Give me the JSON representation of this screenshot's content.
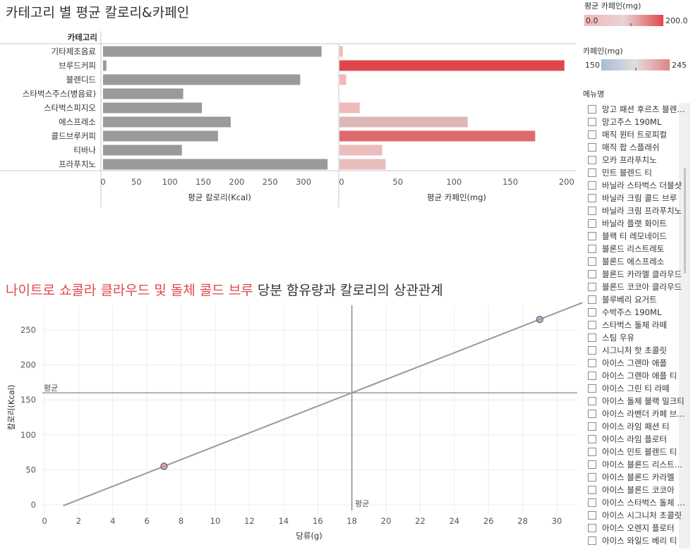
{
  "top_chart": {
    "title": "카테고리 별 평균 칼로리&카페인",
    "category_header": "카테고리",
    "calorie_axis_label": "평균 칼로리(Kcal)",
    "caffeine_axis_label": "평균 카페인(mg)"
  },
  "scatter": {
    "title_highlight": "나이트로 쇼콜라 클라우드 및 돌체 콜드 브루",
    "title_rest": " 당분 함유량과 칼로리의 상관관계",
    "xlabel": "당류(g)",
    "ylabel": "칼로리(Kcal)",
    "avg_label_h": "평균",
    "avg_label_v": "평균"
  },
  "legend": {
    "avg_caffeine": {
      "title": "평균 카페인(mg)",
      "min": "0.0",
      "max": "200.0",
      "color_low": "#f5b8b8",
      "color_high": "#e0474c"
    },
    "caffeine": {
      "title": "카페인(mg)",
      "min": "150",
      "max": "245",
      "color_low": "#a7bcd8",
      "color_high": "#e38282"
    }
  },
  "menu_filter": {
    "title": "메뉴명",
    "items": [
      "망고 패션 후르츠 블렌디드",
      "망고주스 190ML",
      "매직 윈터 트로피컬",
      "매직 팝 스플래쉬",
      "모카 프라푸치노",
      "민트 블렌드 티",
      "바닐라 스타벅스 더블샷",
      "바닐라 크림 콜드 브루",
      "바닐라 크림 프라푸치노",
      "바닐라 플랫 화이트",
      "블랙 티 레모네이드",
      "블론드 리스트레토",
      "블론드 에스프레소",
      "블론드 카라멜 클라우드",
      "블론드 코코아 클라우드",
      "블루베리 요거트",
      "수박주스 190ML",
      "스타벅스 돌체 라떼",
      "스팀 우유",
      "시그니처 핫 초콜릿",
      "아이스 그랜마 애플",
      "아이스 그랜마 애플 티",
      "아이스 그린 티 라떼",
      "아이스 돌체 블랙 밀크티",
      "아이스 라벤더 카페 브레베",
      "아이스 라임 패션 티",
      "아이스 라임 플로터",
      "아이스 민트 블렌드 티",
      "아이스 블론드 리스트레토",
      "아이스 블론드 카라멜",
      "아이스 블론드 코코아",
      "아이스 스타벅스 돌체 라떼",
      "아이스 시그니처 초콜릿",
      "아이스 오렌지 플로터",
      "아이스 와일드 베리 티"
    ]
  },
  "chart_data": [
    {
      "type": "bar",
      "title": "카테고리 별 평균 칼로리&카페인",
      "categories": [
        "기타제조음료",
        "브루드커피",
        "블렌디드",
        "스타벅스주스(병음료)",
        "스타벅스피지오",
        "에스프레소",
        "콜드브루커피",
        "티바나",
        "프라푸치노"
      ],
      "series": [
        {
          "name": "평균 칼로리(Kcal)",
          "values": [
            327,
            5,
            295,
            120,
            148,
            191,
            172,
            118,
            336
          ]
        },
        {
          "name": "평균 카페인(mg)",
          "values": [
            3,
            200,
            6,
            0,
            18,
            114,
            174,
            38,
            41
          ]
        }
      ],
      "calorie_ticks": [
        0,
        50,
        100,
        150,
        200,
        250,
        300
      ],
      "caffeine_ticks": [
        0,
        50,
        100,
        150,
        200
      ],
      "calorie_range": [
        0,
        360
      ],
      "caffeine_range": [
        0,
        205
      ],
      "color_by": "평균 카페인(mg)"
    },
    {
      "type": "scatter",
      "title": "나이트로 쇼콜라 클라우드 및 돌체 콜드 브루 당분 함유량과 칼로리의 상관관계",
      "xlabel": "당류(g)",
      "ylabel": "칼로리(Kcal)",
      "xlim": [
        0,
        31
      ],
      "ylim": [
        -5,
        285
      ],
      "xticks": [
        0,
        2,
        4,
        6,
        8,
        10,
        12,
        14,
        16,
        18,
        20,
        22,
        24,
        26,
        28,
        30
      ],
      "yticks": [
        0,
        50,
        100,
        150,
        200,
        250
      ],
      "points": [
        {
          "x": 7,
          "y": 55,
          "caffeine": 245,
          "color": "#d98a8a"
        },
        {
          "x": 29,
          "y": 265,
          "caffeine": 150,
          "color": "#8ea6c8"
        }
      ],
      "average_x": 18,
      "average_y": 160,
      "trend_line": {
        "slope": 9.55,
        "intercept": -11.8
      },
      "grid": true
    }
  ]
}
